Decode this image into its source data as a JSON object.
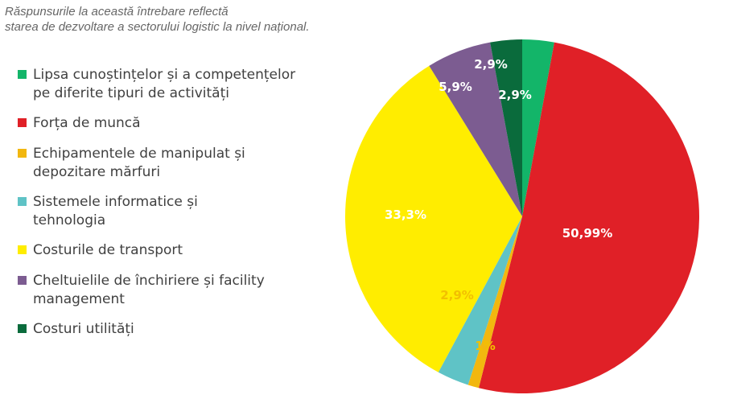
{
  "subtitle": {
    "line1": "Răspunsurile la această întrebare reflectă",
    "line2": "starea de dezvoltare a sectorului logistic la nivel național."
  },
  "chart_data": {
    "type": "pie",
    "legend_position": "left",
    "slices": [
      {
        "label": "Lipsa cunoștințelor și a competențelor\npe diferite tipuri de activități",
        "value": 2.9,
        "value_label": "2,9%",
        "color": "#13b569"
      },
      {
        "label": "Forța de muncă",
        "value": 50.99,
        "value_label": "50,99%",
        "color": "#e02027"
      },
      {
        "label": "Echipamentele de manipulat și\ndepozitare mărfuri",
        "value": 1,
        "value_label": "1%",
        "color": "#f2b70f"
      },
      {
        "label": "Sistemele informatice și\ntehnologia",
        "value": 2.9,
        "value_label": "2,9%",
        "color": "#5fc3c6"
      },
      {
        "label": "Costurile de transport",
        "value": 33.3,
        "value_label": "33,3%",
        "color": "#ffed00"
      },
      {
        "label": "Cheltuielile de închiriere și facility\nmanagement",
        "value": 5.9,
        "value_label": "5,9%",
        "color": "#7c5c91"
      },
      {
        "label": "Costuri utilități",
        "value": 2.9,
        "value_label": "2,9%",
        "color": "#0a6b3c"
      }
    ]
  }
}
